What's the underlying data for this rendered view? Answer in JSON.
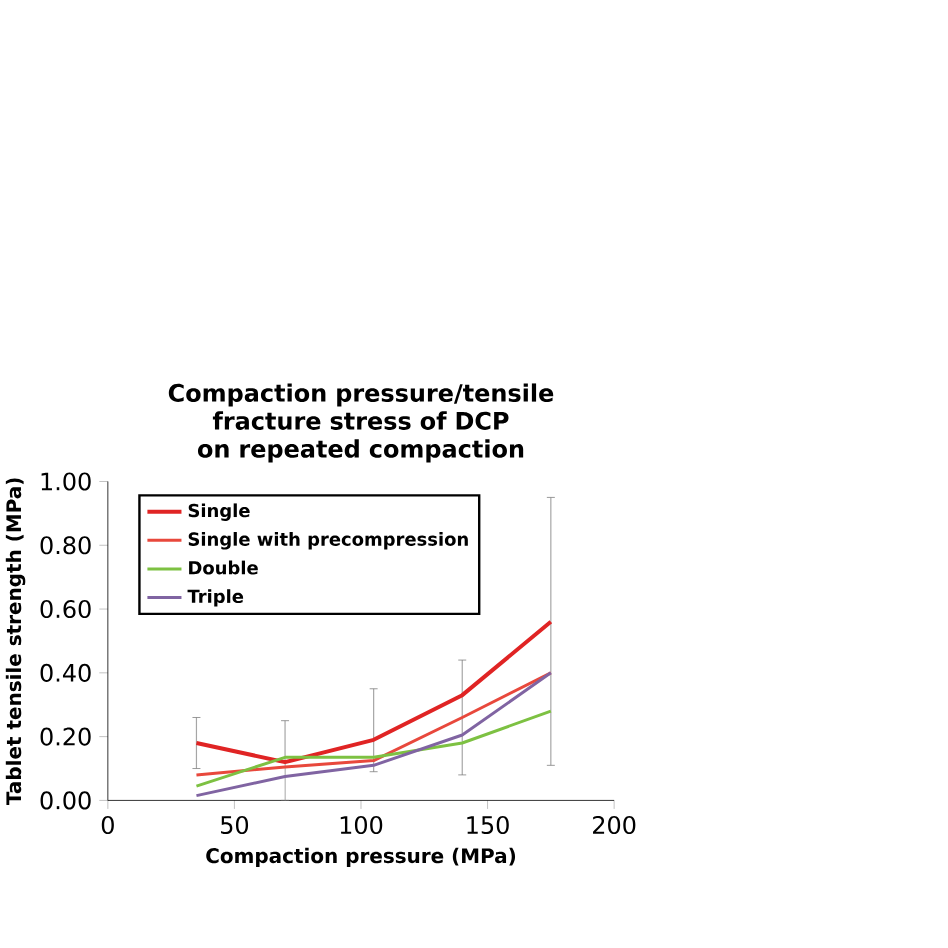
{
  "chart_data": {
    "type": "line",
    "title": "Compaction pressure/tensile fracture stress of DCP on repeated compaction",
    "xlabel": "Compaction pressure (MPa)",
    "ylabel": "Tablet tensile strength (MPa)",
    "x": [
      35,
      70,
      105,
      140,
      175
    ],
    "xlim": [
      0,
      200
    ],
    "xticks": [
      0,
      50,
      100,
      150,
      200
    ],
    "ylim": [
      0,
      1.0
    ],
    "yticks": [
      {
        "value": 0,
        "label": "0.00"
      },
      {
        "value": 0.2,
        "label": "0.20"
      },
      {
        "value": 0.4,
        "label": "0.40"
      },
      {
        "value": 0.6,
        "label": "0.60"
      },
      {
        "value": 0.8,
        "label": "0.80"
      },
      {
        "value": 1.0,
        "label": "1.00"
      }
    ],
    "legend": "top left",
    "marker": "none",
    "line_style": "solid",
    "series": [
      {
        "name": "Single",
        "color": "#e02424",
        "values": [
          0.18,
          0.12,
          0.19,
          0.33,
          0.56
        ],
        "errors": [
          [
            0.1,
            0.26
          ],
          [
            0.0,
            0.25
          ],
          [
            0.09,
            0.35
          ],
          [
            0.08,
            0.44
          ],
          [
            0.11,
            0.95
          ]
        ]
      },
      {
        "name": "Single with precompression",
        "color": "#e8483c",
        "values": [
          0.08,
          0.105,
          0.125,
          0.26,
          0.4
        ]
      },
      {
        "name": "Double",
        "color": "#7dc142",
        "values": [
          0.045,
          0.135,
          0.135,
          0.18,
          0.28
        ]
      },
      {
        "name": "Triple",
        "color": "#8064a2",
        "values": [
          0.015,
          0.075,
          0.11,
          0.205,
          0.4
        ]
      }
    ]
  }
}
